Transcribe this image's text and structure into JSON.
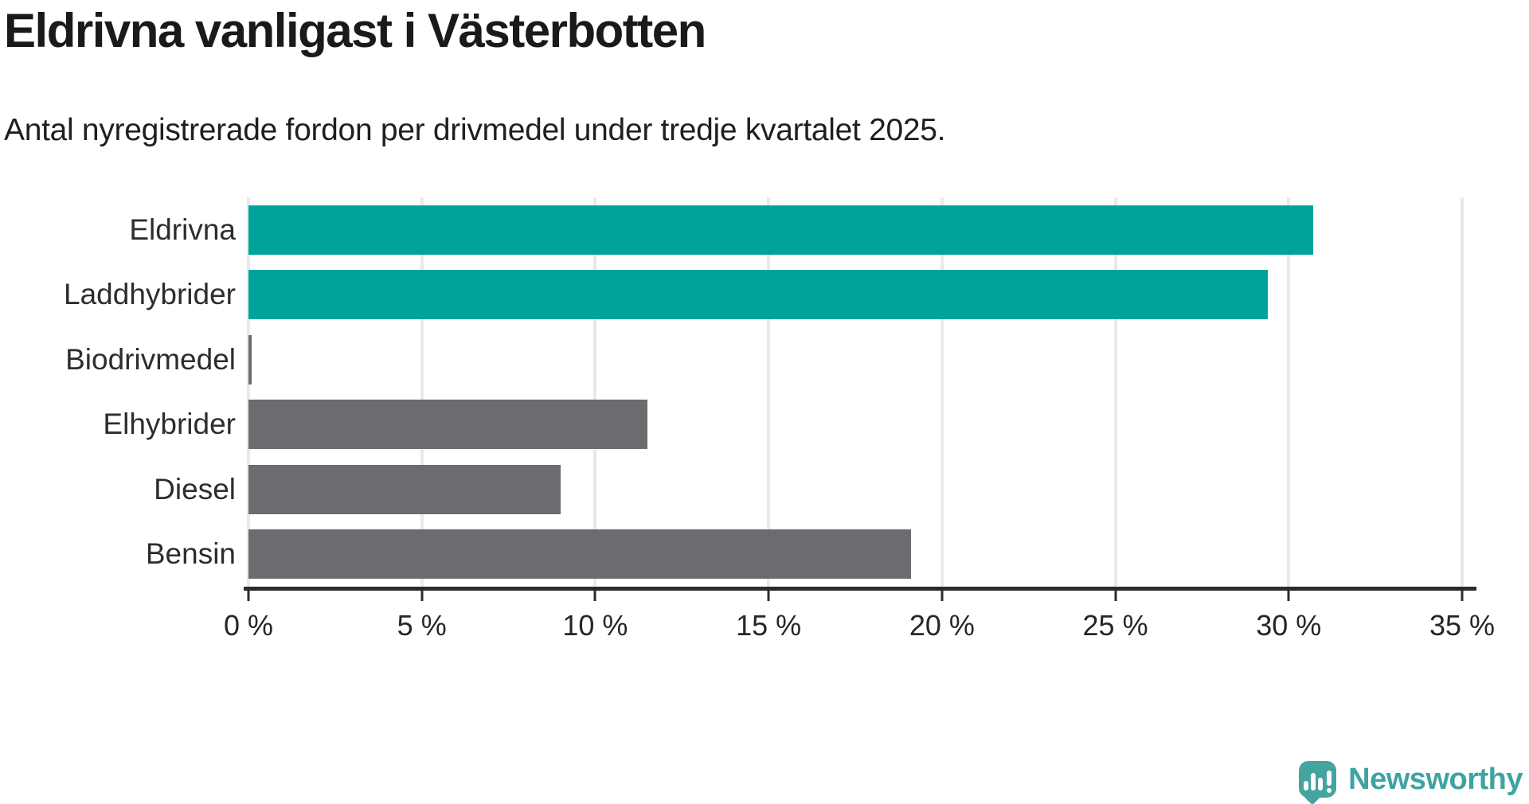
{
  "header": {
    "title": "Eldrivna vanligast i Västerbotten",
    "subtitle": "Antal nyregistrerade fordon per drivmedel under tredje kvartalet 2025."
  },
  "chart_data": {
    "type": "bar",
    "orientation": "horizontal",
    "title": "Eldrivna vanligast i Västerbotten",
    "subtitle": "Antal nyregistrerade fordon per drivmedel under tredje kvartalet 2025.",
    "categories": [
      "Eldrivna",
      "Laddhybrider",
      "Biodrivmedel",
      "Elhybrider",
      "Diesel",
      "Bensin"
    ],
    "values": [
      30.7,
      29.4,
      0.1,
      11.5,
      9.0,
      19.1
    ],
    "unit": "%",
    "xlabel": "",
    "ylabel": "",
    "xlim": [
      0,
      35
    ],
    "x_ticks": [
      0,
      5,
      10,
      15,
      20,
      25,
      30,
      35
    ],
    "x_tick_labels": [
      "0 %",
      "5 %",
      "10 %",
      "15 %",
      "20 %",
      "25 %",
      "30 %",
      "35 %"
    ],
    "bar_colors": [
      "#00a39a",
      "#00a39a",
      "#6b6b70",
      "#6b6b70",
      "#6b6b70",
      "#6b6b70"
    ],
    "highlight_color": "#00a39a",
    "default_color": "#6b6b70",
    "grid": true,
    "gridline_color": "#e9e9ea",
    "legend": false
  },
  "footer": {
    "brand": "Newsworthy",
    "brand_color": "#3fa3a2"
  }
}
